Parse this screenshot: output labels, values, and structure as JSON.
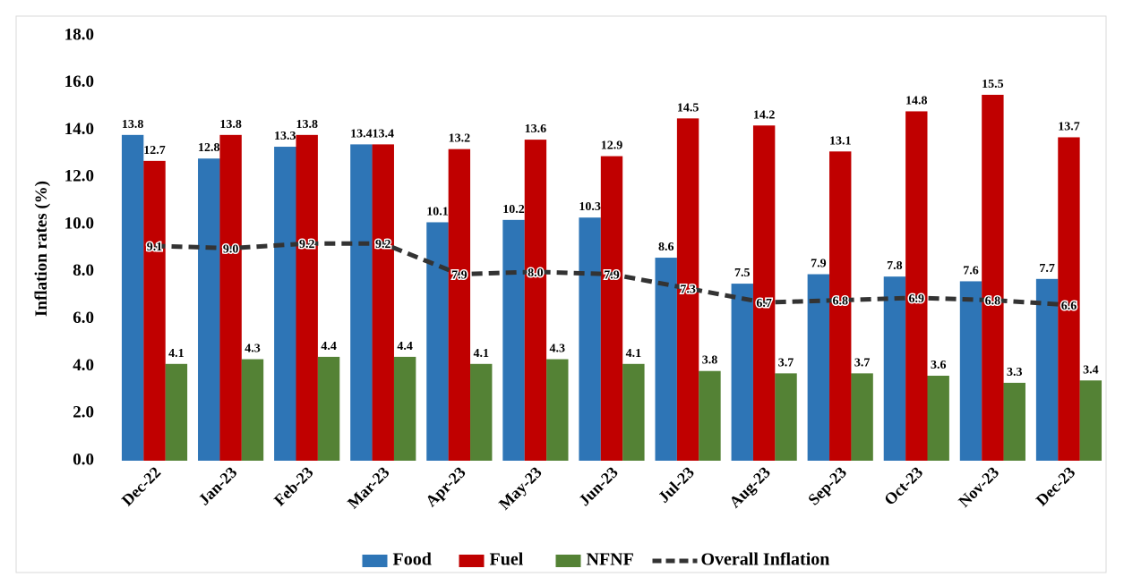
{
  "chart_data": {
    "type": "bar",
    "y_label": "Inflation rates (%)",
    "categories": [
      "Dec-22",
      "Jan-23",
      "Feb-23",
      "Mar-23",
      "Apr-23",
      "May-23",
      "Jun-23",
      "Jul-23",
      "Aug-23",
      "Sep-23",
      "Oct-23",
      "Nov-23",
      "Dec-23"
    ],
    "series": [
      {
        "name": "Food",
        "color": "#2e75b6",
        "values": [
          13.8,
          12.8,
          13.3,
          13.4,
          10.1,
          10.2,
          10.3,
          8.6,
          7.5,
          7.9,
          7.8,
          7.6,
          7.7
        ]
      },
      {
        "name": "Fuel",
        "color": "#c00000",
        "values": [
          12.7,
          13.8,
          13.8,
          13.4,
          13.2,
          13.6,
          12.9,
          14.5,
          14.2,
          13.1,
          14.8,
          15.5,
          13.7
        ]
      },
      {
        "name": "NFNF",
        "color": "#548235",
        "values": [
          4.1,
          4.3,
          4.4,
          4.4,
          4.1,
          4.3,
          4.1,
          3.8,
          3.7,
          3.7,
          3.6,
          3.3,
          3.4
        ]
      },
      {
        "name": "Overall Inflation",
        "type": "line",
        "dashed": true,
        "color": "#333333",
        "values": [
          9.1,
          9.0,
          9.2,
          9.2,
          7.9,
          8.0,
          7.9,
          7.3,
          6.7,
          6.8,
          6.9,
          6.8,
          6.6
        ],
        "value_labels": [
          "9.1",
          "9.0",
          "9.2",
          "9.2",
          "7.9",
          "8.0",
          "7.9",
          "7.3",
          "6.7",
          "6.8",
          "6.9",
          "6.8",
          "6.6"
        ]
      }
    ],
    "ylim": [
      0,
      18
    ],
    "yticks": [
      {
        "value": 0,
        "label": "0.0"
      },
      {
        "value": 2,
        "label": "2.0"
      },
      {
        "value": 4,
        "label": "4.0"
      },
      {
        "value": 6,
        "label": "6.0"
      },
      {
        "value": 8,
        "label": "8.0"
      },
      {
        "value": 10,
        "label": "10.0"
      },
      {
        "value": 12,
        "label": "12.0"
      },
      {
        "value": 14,
        "label": "14.0"
      },
      {
        "value": 16,
        "label": "16.0"
      },
      {
        "value": 18,
        "label": "18.0"
      }
    ],
    "grid": false,
    "legend": "bottom"
  }
}
